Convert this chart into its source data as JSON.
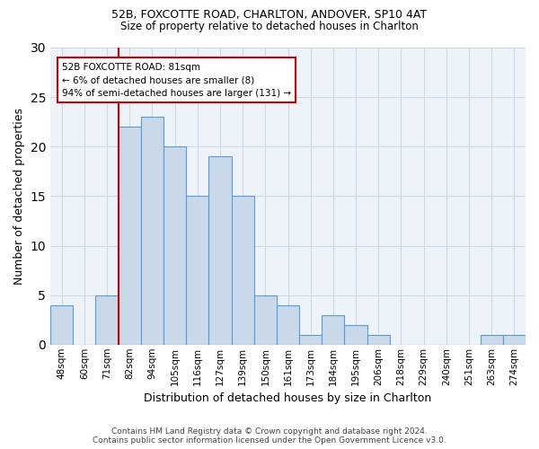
{
  "title_line1": "52B, FOXCOTTE ROAD, CHARLTON, ANDOVER, SP10 4AT",
  "title_line2": "Size of property relative to detached houses in Charlton",
  "xlabel": "Distribution of detached houses by size in Charlton",
  "ylabel": "Number of detached properties",
  "categories": [
    "48sqm",
    "60sqm",
    "71sqm",
    "82sqm",
    "94sqm",
    "105sqm",
    "116sqm",
    "127sqm",
    "139sqm",
    "150sqm",
    "161sqm",
    "173sqm",
    "184sqm",
    "195sqm",
    "206sqm",
    "218sqm",
    "229sqm",
    "240sqm",
    "251sqm",
    "263sqm",
    "274sqm"
  ],
  "values": [
    4,
    0,
    5,
    22,
    23,
    20,
    15,
    19,
    15,
    5,
    4,
    1,
    3,
    2,
    1,
    0,
    0,
    0,
    0,
    1,
    1
  ],
  "bar_color": "#c9d9ea",
  "bar_edge_color": "#5b9bd5",
  "grid_color": "#d0d8e8",
  "bg_color": "#eef2f9",
  "annotation_box_color": "#cc0000",
  "vline_color": "#cc0000",
  "vline_x_index": 3,
  "annotation_line1": "52B FOXCOTTE ROAD: 81sqm",
  "annotation_line2": "← 6% of detached houses are smaller (8)",
  "annotation_line3": "94% of semi-detached houses are larger (131) →",
  "footer_line1": "Contains HM Land Registry data © Crown copyright and database right 2024.",
  "footer_line2": "Contains public sector information licensed under the Open Government Licence v3.0.",
  "ylim": [
    0,
    30
  ],
  "yticks": [
    0,
    5,
    10,
    15,
    20,
    25,
    30
  ]
}
